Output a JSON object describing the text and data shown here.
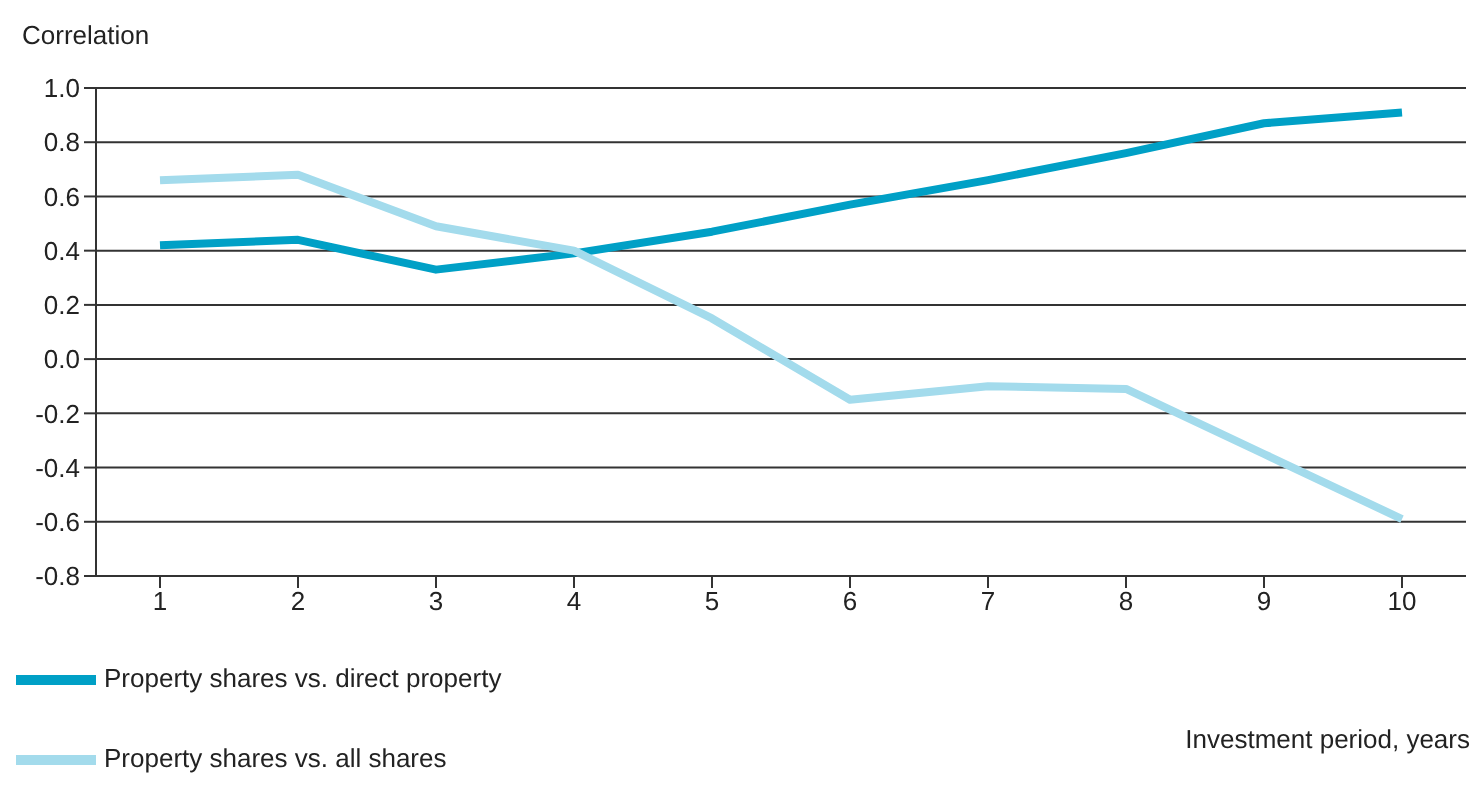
{
  "chart_data": {
    "type": "line",
    "ylabel": "Correlation",
    "xlabel": "Investment period, years",
    "categories": [
      "1",
      "2",
      "3",
      "4",
      "5",
      "6",
      "7",
      "8",
      "9",
      "10"
    ],
    "series": [
      {
        "name": "Property shares vs. direct property",
        "color": "#00a0c6",
        "values": [
          0.42,
          0.44,
          0.33,
          0.39,
          0.47,
          0.57,
          0.66,
          0.76,
          0.87,
          0.91
        ]
      },
      {
        "name": "Property shares vs. all shares",
        "color": "#a3dbec",
        "values": [
          0.66,
          0.68,
          0.49,
          0.4,
          0.15,
          -0.15,
          -0.1,
          -0.11,
          -0.35,
          -0.59
        ]
      }
    ],
    "ylim": [
      -0.8,
      1.0
    ],
    "yticks": [
      {
        "value": -0.8,
        "label": "-0.8"
      },
      {
        "value": -0.6,
        "label": "-0.6"
      },
      {
        "value": -0.4,
        "label": "-0.4"
      },
      {
        "value": -0.2,
        "label": "-0.2"
      },
      {
        "value": 0,
        "label": "0.0"
      },
      {
        "value": 0.2,
        "label": "0.2"
      },
      {
        "value": 0.4,
        "label": "0.4"
      },
      {
        "value": 0.6,
        "label": "0.6"
      },
      {
        "value": 0.8,
        "label": "0.8"
      },
      {
        "value": 1.0,
        "label": "1.0"
      }
    ],
    "grid": "y",
    "legend": "bottom left",
    "marker": "none",
    "line_style": "solid"
  }
}
